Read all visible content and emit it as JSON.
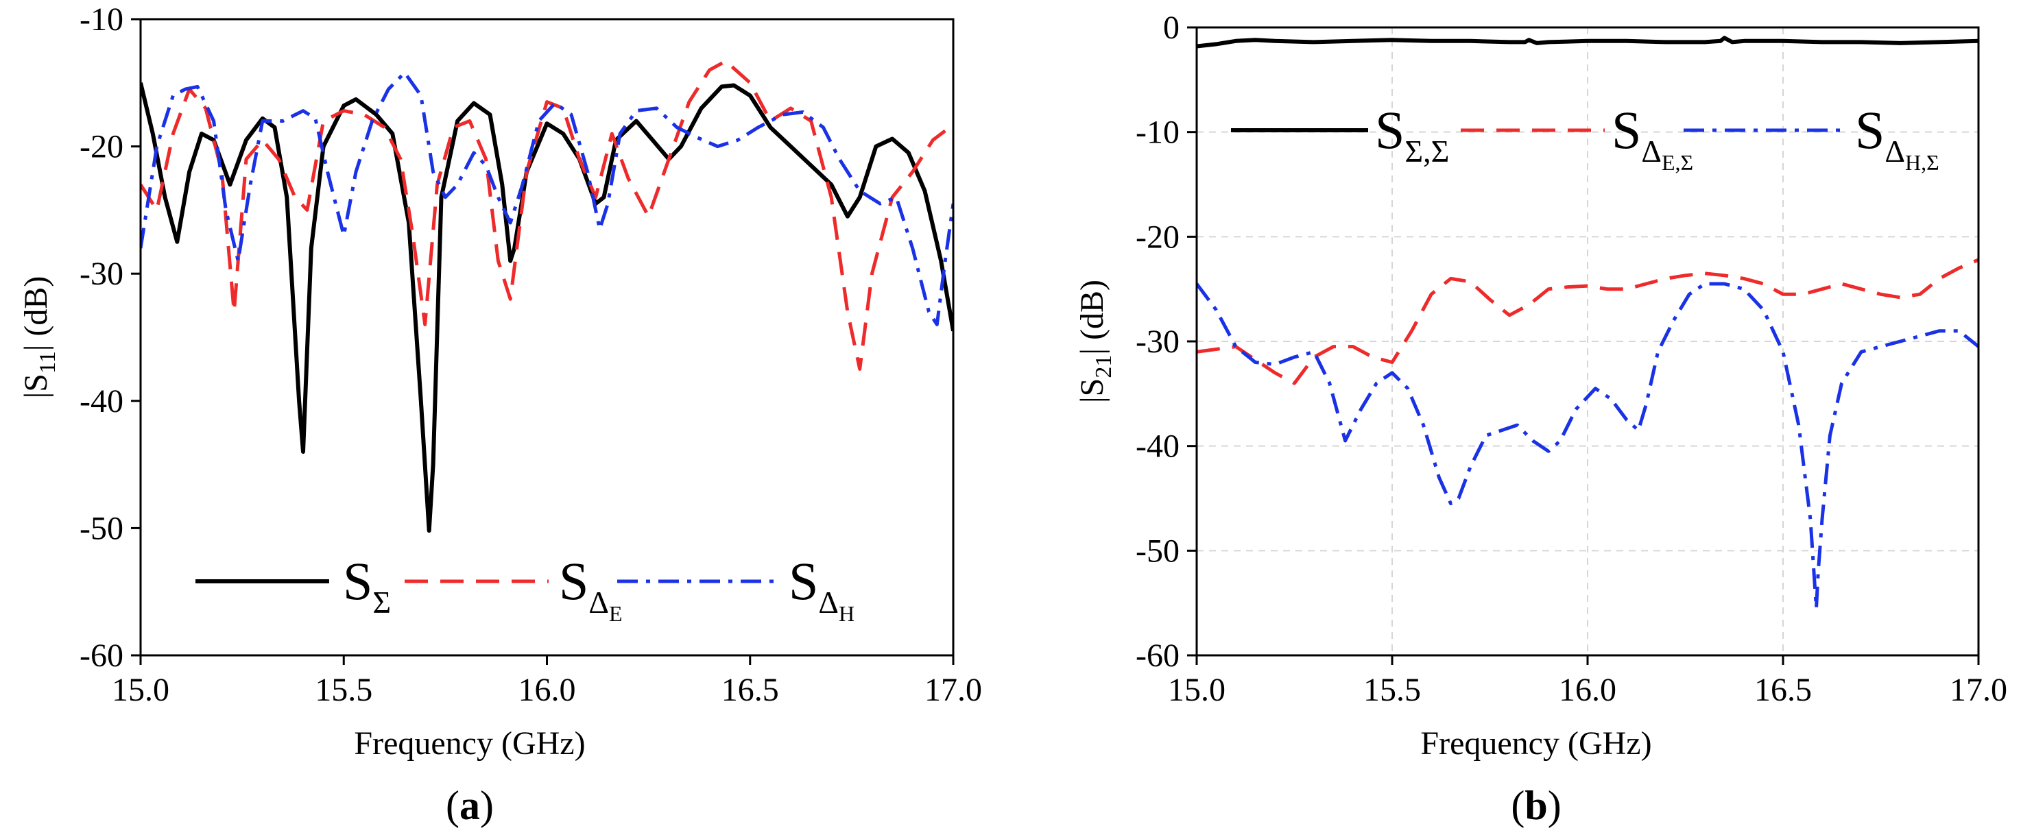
{
  "chart_data": [
    {
      "type": "line",
      "panel_label": "a",
      "xlabel": "Frequency (GHz)",
      "ylabel": "|S11| (dB)",
      "ylabel_parts": {
        "prefix": "|S",
        "sub": "11",
        "suffix": "| (dB)"
      },
      "xlim": [
        15.0,
        17.0
      ],
      "ylim": [
        -60,
        -10
      ],
      "xticks": [
        15.0,
        15.5,
        16.0,
        16.5,
        17.0
      ],
      "xtick_labels": [
        "15.0",
        "15.5",
        "16.0",
        "16.5",
        "17.0"
      ],
      "yticks": [
        -60,
        -50,
        -40,
        -30,
        -20,
        -10
      ],
      "ytick_labels": [
        "-60",
        "-50",
        "-40",
        "-30",
        "-20",
        "-10"
      ],
      "grid": false,
      "legend_placement": "bottom",
      "series": [
        {
          "name": "SΣ",
          "label_main": "S",
          "label_sub": "Σ",
          "label_subsub": "",
          "color": "#000000",
          "style": "solid",
          "x": [
            15.0,
            15.03,
            15.06,
            15.09,
            15.12,
            15.15,
            15.18,
            15.22,
            15.26,
            15.3,
            15.33,
            15.36,
            15.39,
            15.4,
            15.42,
            15.45,
            15.5,
            15.53,
            15.58,
            15.62,
            15.66,
            15.69,
            15.71,
            15.72,
            15.74,
            15.78,
            15.82,
            15.86,
            15.89,
            15.91,
            15.92,
            15.95,
            16.0,
            16.04,
            16.08,
            16.12,
            16.14,
            16.17,
            16.22,
            16.26,
            16.3,
            16.33,
            16.38,
            16.43,
            16.46,
            16.5,
            16.55,
            16.6,
            16.65,
            16.7,
            16.74,
            16.77,
            16.81,
            16.85,
            16.89,
            16.93,
            16.97,
            17.0
          ],
          "y": [
            -15,
            -19,
            -24,
            -27.5,
            -22,
            -19,
            -19.5,
            -23,
            -19.5,
            -17.8,
            -18.5,
            -24,
            -40,
            -44,
            -28,
            -20,
            -16.8,
            -16.3,
            -17.5,
            -19,
            -26,
            -40,
            -50.2,
            -45,
            -24,
            -18,
            -16.6,
            -17.5,
            -23,
            -29,
            -28,
            -22,
            -18.2,
            -19,
            -21,
            -24.5,
            -24,
            -19.5,
            -18,
            -19.5,
            -21,
            -20,
            -17,
            -15.3,
            -15.2,
            -16,
            -18.5,
            -20,
            -21.5,
            -23,
            -25.5,
            -24,
            -20,
            -19.4,
            -20.5,
            -23.5,
            -29,
            -34.5
          ]
        },
        {
          "name": "SΔE",
          "label_main": "S",
          "label_sub": "Δ",
          "label_subsub": "E",
          "color": "#ee2a2a",
          "style": "dashed",
          "x": [
            15.0,
            15.04,
            15.08,
            15.12,
            15.16,
            15.2,
            15.23,
            15.26,
            15.3,
            15.34,
            15.38,
            15.41,
            15.45,
            15.5,
            15.55,
            15.6,
            15.64,
            15.67,
            15.7,
            15.73,
            15.77,
            15.81,
            15.85,
            15.88,
            15.91,
            15.95,
            16.0,
            16.04,
            16.08,
            16.12,
            16.16,
            16.2,
            16.25,
            16.3,
            16.35,
            16.4,
            16.44,
            16.5,
            16.55,
            16.6,
            16.65,
            16.7,
            16.74,
            16.77,
            16.8,
            16.85,
            16.9,
            16.95,
            17.0
          ],
          "y": [
            -23,
            -25,
            -19,
            -15.5,
            -17,
            -22,
            -33,
            -21,
            -19.5,
            -21,
            -24,
            -25,
            -18,
            -17.2,
            -17.5,
            -18.5,
            -21,
            -27,
            -34,
            -23,
            -18.5,
            -18,
            -21,
            -29,
            -32,
            -22,
            -16.5,
            -17,
            -21,
            -24,
            -19,
            -22.5,
            -25.5,
            -21,
            -16.5,
            -14,
            -13.3,
            -15,
            -18,
            -17,
            -18,
            -24,
            -33,
            -37.5,
            -30,
            -24,
            -22,
            -19.5,
            -18.3
          ]
        },
        {
          "name": "SΔH",
          "label_main": "S",
          "label_sub": "Δ",
          "label_subsub": "H",
          "color": "#1a32e6",
          "style": "dashdot",
          "x": [
            15.0,
            15.04,
            15.08,
            15.11,
            15.14,
            15.18,
            15.21,
            15.24,
            15.27,
            15.3,
            15.35,
            15.4,
            15.43,
            15.46,
            15.5,
            15.53,
            15.57,
            15.61,
            15.65,
            15.69,
            15.72,
            15.75,
            15.78,
            15.82,
            15.85,
            15.88,
            15.91,
            15.94,
            15.98,
            16.02,
            16.06,
            16.1,
            16.13,
            16.15,
            16.18,
            16.22,
            16.27,
            16.32,
            16.37,
            16.42,
            16.47,
            16.52,
            16.58,
            16.63,
            16.68,
            16.72,
            16.77,
            16.82,
            16.86,
            16.9,
            16.94,
            16.96,
            16.98,
            17.0
          ],
          "y": [
            -28,
            -20,
            -16,
            -15.5,
            -15.3,
            -18,
            -25,
            -29,
            -23,
            -18,
            -18,
            -17.2,
            -17.8,
            -22,
            -27,
            -22,
            -18,
            -15.5,
            -14.2,
            -16,
            -22,
            -24,
            -23,
            -20.5,
            -21.5,
            -24,
            -26,
            -23,
            -18,
            -16.6,
            -17.5,
            -22,
            -26.5,
            -24.5,
            -19,
            -17.2,
            -17,
            -18.5,
            -19.3,
            -20,
            -19.5,
            -18.5,
            -17.5,
            -17.3,
            -18.5,
            -21,
            -23.5,
            -24.5,
            -24,
            -28,
            -33,
            -34,
            -29,
            -24.5
          ]
        }
      ]
    },
    {
      "type": "line",
      "panel_label": "b",
      "xlabel": "Frequency (GHz)",
      "ylabel": "|S21| (dB)",
      "ylabel_parts": {
        "prefix": "|S",
        "sub": "21",
        "suffix": "| (dB)"
      },
      "xlim": [
        15.0,
        17.0
      ],
      "ylim": [
        -60,
        0
      ],
      "xticks": [
        15.0,
        15.5,
        16.0,
        16.5,
        17.0
      ],
      "xtick_labels": [
        "15.0",
        "15.5",
        "16.0",
        "16.5",
        "17.0"
      ],
      "yticks": [
        -60,
        -50,
        -40,
        -30,
        -20,
        -10,
        0
      ],
      "ytick_labels": [
        "-60",
        "-50",
        "-40",
        "-30",
        "-20",
        "-10",
        "0"
      ],
      "grid": true,
      "legend_placement": "top",
      "series": [
        {
          "name": "SΣ,Σ",
          "label_main": "S",
          "label_sub": "Σ,Σ",
          "label_subsub": "",
          "color": "#000000",
          "style": "solid",
          "x": [
            15.0,
            15.05,
            15.1,
            15.15,
            15.2,
            15.3,
            15.4,
            15.5,
            15.6,
            15.7,
            15.8,
            15.84,
            15.85,
            15.87,
            15.9,
            16.0,
            16.1,
            16.2,
            16.3,
            16.34,
            16.35,
            16.37,
            16.4,
            16.5,
            16.6,
            16.7,
            16.8,
            16.9,
            17.0
          ],
          "y": [
            -1.8,
            -1.6,
            -1.3,
            -1.2,
            -1.3,
            -1.4,
            -1.3,
            -1.2,
            -1.3,
            -1.3,
            -1.4,
            -1.4,
            -1.2,
            -1.5,
            -1.4,
            -1.3,
            -1.3,
            -1.4,
            -1.4,
            -1.3,
            -1.0,
            -1.4,
            -1.3,
            -1.3,
            -1.4,
            -1.4,
            -1.5,
            -1.4,
            -1.3
          ]
        },
        {
          "name": "SΔE,Σ",
          "label_main": "S",
          "label_sub": "Δ",
          "label_subsub": "E,Σ",
          "color": "#ee2a2a",
          "style": "dashed",
          "x": [
            15.0,
            15.1,
            15.2,
            15.25,
            15.3,
            15.35,
            15.4,
            15.45,
            15.5,
            15.55,
            15.6,
            15.65,
            15.7,
            15.75,
            15.8,
            15.85,
            15.9,
            15.95,
            16.0,
            16.05,
            16.1,
            16.15,
            16.2,
            16.25,
            16.3,
            16.35,
            16.4,
            16.45,
            16.5,
            16.55,
            16.6,
            16.65,
            16.7,
            16.75,
            16.8,
            16.85,
            16.9,
            16.95,
            17.0
          ],
          "y": [
            -31,
            -30.5,
            -33,
            -34,
            -31.5,
            -30.5,
            -30.5,
            -31.5,
            -32,
            -29,
            -25.5,
            -24,
            -24.3,
            -26,
            -27.5,
            -26.5,
            -25,
            -24.8,
            -24.7,
            -25,
            -25,
            -24.5,
            -24,
            -23.7,
            -23.5,
            -23.7,
            -24,
            -24.5,
            -25.5,
            -25.5,
            -25,
            -24.5,
            -25,
            -25.5,
            -25.8,
            -25.5,
            -24,
            -23,
            -22.2
          ]
        },
        {
          "name": "SΔH,Σ",
          "label_main": "S",
          "label_sub": "Δ",
          "label_subsub": "H,Σ",
          "color": "#1a32e6",
          "style": "dashdot",
          "x": [
            15.0,
            15.05,
            15.1,
            15.15,
            15.2,
            15.25,
            15.3,
            15.34,
            15.38,
            15.42,
            15.46,
            15.5,
            15.54,
            15.58,
            15.62,
            15.65,
            15.67,
            15.7,
            15.74,
            15.78,
            15.82,
            15.86,
            15.9,
            15.93,
            15.97,
            16.02,
            16.06,
            16.1,
            16.13,
            16.15,
            16.18,
            16.22,
            16.26,
            16.3,
            16.35,
            16.4,
            16.45,
            16.5,
            16.54,
            16.57,
            16.585,
            16.59,
            16.6,
            16.62,
            16.65,
            16.7,
            16.75,
            16.8,
            16.85,
            16.9,
            16.95,
            17.0
          ],
          "y": [
            -24.5,
            -27,
            -30.5,
            -32,
            -32.2,
            -31.5,
            -31,
            -34,
            -39.5,
            -36.5,
            -34,
            -33,
            -34.5,
            -38,
            -43,
            -45.5,
            -45,
            -42,
            -39,
            -38.5,
            -38,
            -39.5,
            -40.5,
            -39.5,
            -36.5,
            -34.5,
            -35.5,
            -37.5,
            -38.5,
            -36,
            -31,
            -28,
            -25.5,
            -24.5,
            -24.5,
            -25,
            -27,
            -31,
            -38,
            -47,
            -55.5,
            -52,
            -47,
            -39,
            -34,
            -31,
            -30.5,
            -30,
            -29.5,
            -29,
            -29,
            -30.5
          ]
        }
      ]
    }
  ]
}
